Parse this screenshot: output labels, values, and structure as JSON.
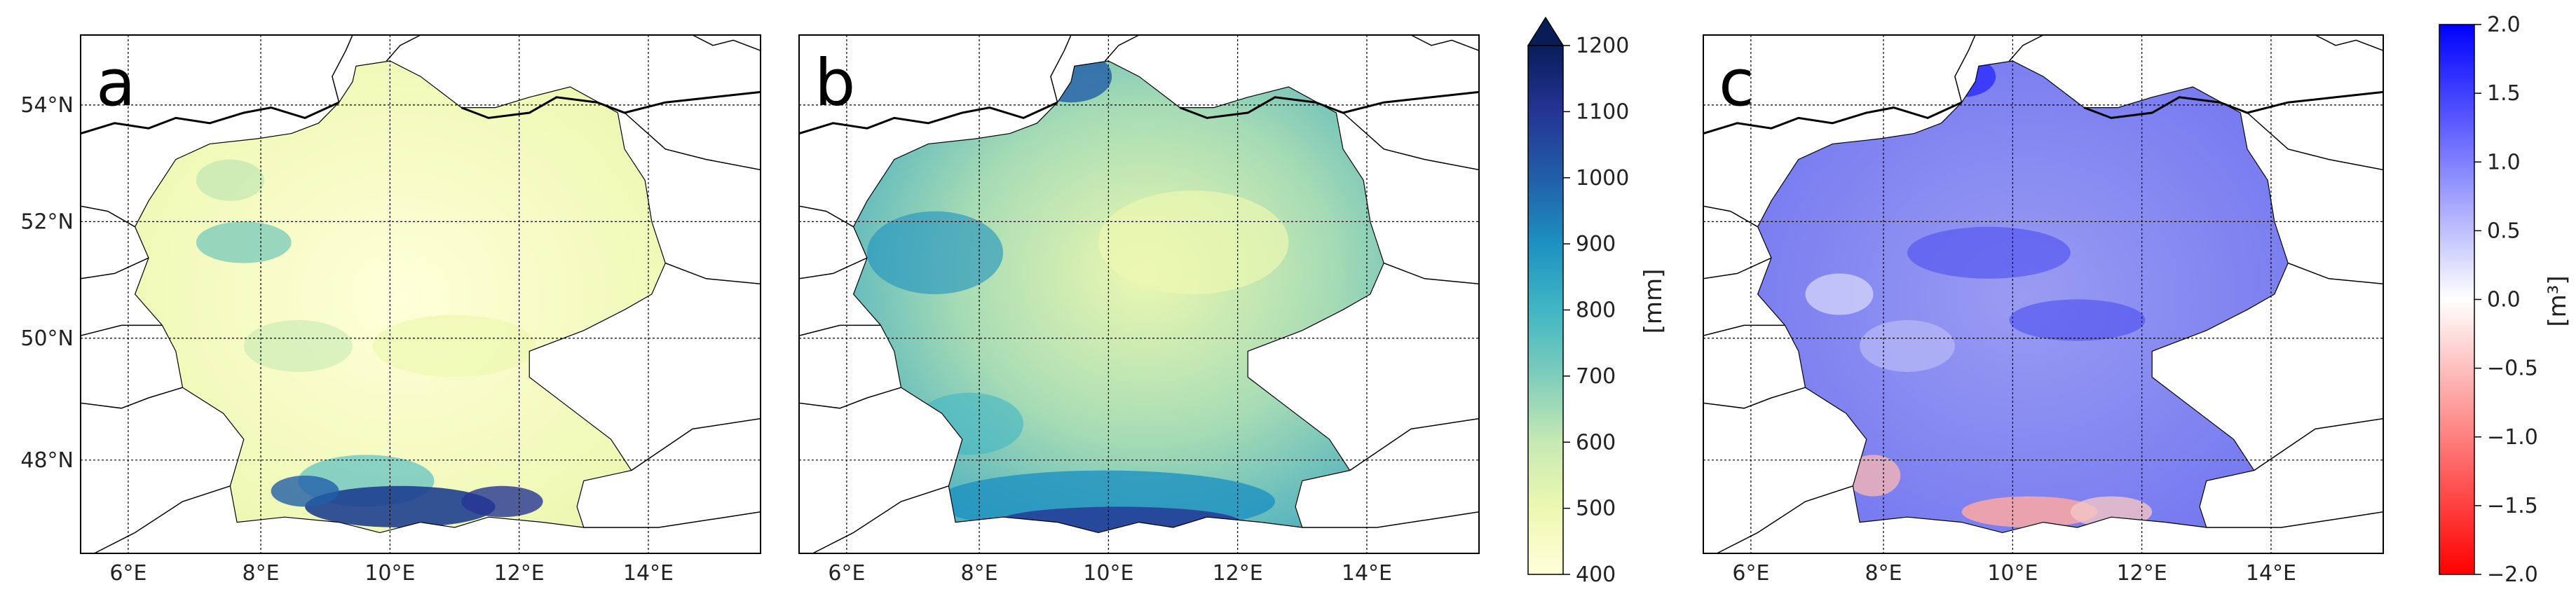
{
  "panels": [
    {
      "id": "a",
      "letter": "a"
    },
    {
      "id": "b",
      "letter": "b"
    },
    {
      "id": "c",
      "letter": "c"
    }
  ],
  "lat_ticks": [
    "54°N",
    "52°N",
    "50°N",
    "48°N"
  ],
  "lon_ticks": [
    "6°E",
    "8°E",
    "10°E",
    "12°E",
    "14°E"
  ],
  "colorbar_precip": {
    "label": "[mm]",
    "ticks": [
      "1200",
      "1100",
      "1000",
      "900",
      "800",
      "700",
      "600",
      "500",
      "400"
    ],
    "range": [
      400,
      1200
    ],
    "extend": "max",
    "colormap": "YlGnBu"
  },
  "colorbar_diff": {
    "label": "[m³]",
    "ticks": [
      "2.0",
      "1.5",
      "1.0",
      "0.5",
      "0.0",
      "−0.5",
      "−1.0",
      "−1.5",
      "−2.0"
    ],
    "range": [
      -2.0,
      2.0
    ],
    "colormap": "bwr_r"
  },
  "colors": {
    "ylgnbu_low": "#ffffd9",
    "ylgnbu_mid": "#7fcdbb",
    "ylgnbu_high": "#081d58",
    "diff_pos": "#0000ff",
    "diff_zero": "#ffffff",
    "diff_neg": "#ff0000"
  }
}
